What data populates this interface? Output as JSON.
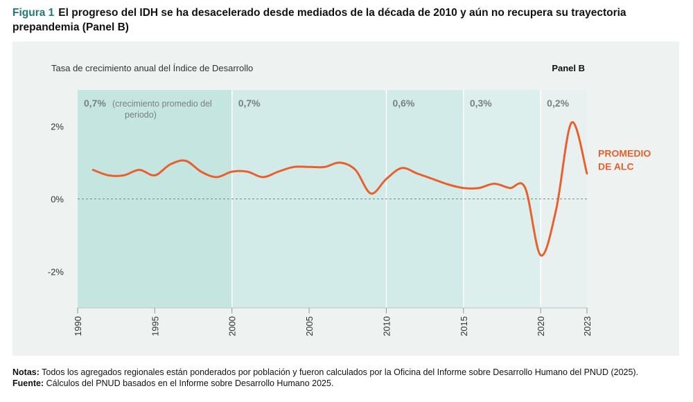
{
  "figure": {
    "label": "Figura 1",
    "title": "El progreso del IDH se ha desacelerado desde mediados de la década de 2010 y aún no recupera su trayectoria prepandemia (Panel B)"
  },
  "notes": {
    "notes_label": "Notas:",
    "notes_text": "Todos los agregados regionales están ponderados por población y fueron calculados por la Oficina del Informe sobre Desarrollo Humano del PNUD (2025).",
    "source_label": "Fuente:",
    "source_text": "Cálculos del PNUD basados en el Informe sobre Desarrollo Humano 2025."
  },
  "chart_data": {
    "type": "line",
    "title": "Tasa de crecimiento anual del Índice de Desarrollo",
    "panel_label": "Panel B",
    "xlim": [
      1990,
      2023
    ],
    "ylim": [
      -3,
      3
    ],
    "x_ticks": [
      "1990",
      "1995",
      "2000",
      "2005",
      "2010",
      "2015",
      "2020",
      "2023"
    ],
    "y_ticks": [
      {
        "value": 2,
        "label": "2%"
      },
      {
        "value": 0,
        "label": "0%"
      },
      {
        "value": -2,
        "label": "-2%"
      }
    ],
    "zero_line": "dashed",
    "periods": [
      {
        "start": 1990,
        "end": 2000,
        "avg_label": "0,7%",
        "note": "(crecimiento promedio del periodo)",
        "color": "#c5e6e0"
      },
      {
        "start": 2000,
        "end": 2010,
        "avg_label": "0,7%",
        "color": "#d3ebe8"
      },
      {
        "start": 2010,
        "end": 2015,
        "avg_label": "0,6%",
        "color": "#d3ebe8"
      },
      {
        "start": 2015,
        "end": 2020,
        "avg_label": "0,3%",
        "color": "#dcefec"
      },
      {
        "start": 2020,
        "end": 2023,
        "avg_label": "0,2%",
        "color": "#e9f0f0"
      }
    ],
    "series": [
      {
        "name": "PROMEDIO DE ALC",
        "color": "#e8602c",
        "x": [
          1991,
          1992,
          1993,
          1994,
          1995,
          1996,
          1997,
          1998,
          1999,
          2000,
          2001,
          2002,
          2003,
          2004,
          2005,
          2006,
          2007,
          2008,
          2009,
          2010,
          2011,
          2012,
          2013,
          2014,
          2015,
          2016,
          2017,
          2018,
          2019,
          2020,
          2021,
          2022,
          2023
        ],
        "y": [
          0.8,
          0.65,
          0.65,
          0.8,
          0.65,
          0.95,
          1.05,
          0.75,
          0.6,
          0.75,
          0.75,
          0.6,
          0.75,
          0.88,
          0.88,
          0.88,
          1.0,
          0.8,
          0.15,
          0.55,
          0.85,
          0.7,
          0.55,
          0.4,
          0.3,
          0.3,
          0.42,
          0.3,
          0.3,
          -1.55,
          -0.3,
          2.1,
          0.7
        ]
      }
    ]
  }
}
